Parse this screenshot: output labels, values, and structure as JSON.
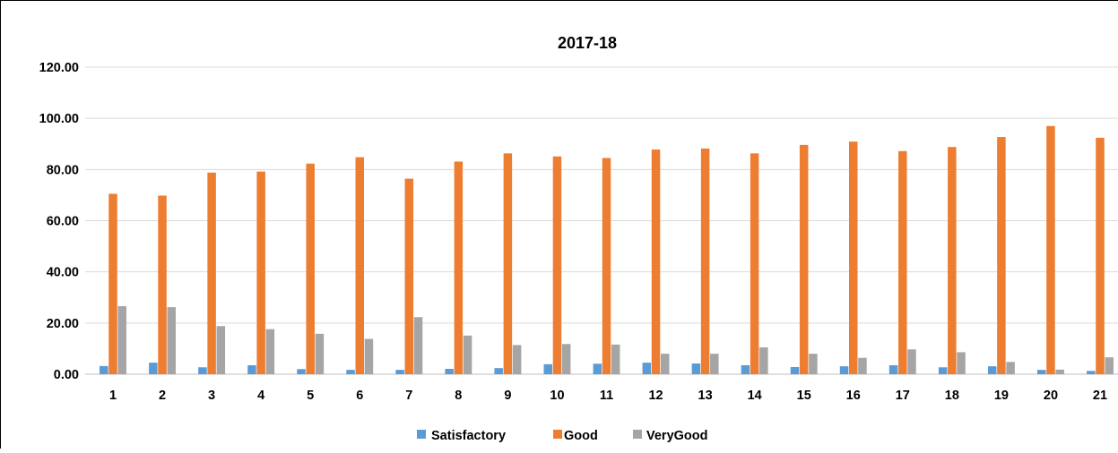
{
  "chart_data": {
    "type": "bar",
    "title": "2017-18",
    "categories": [
      "1",
      "2",
      "3",
      "4",
      "5",
      "6",
      "7",
      "8",
      "9",
      "10",
      "11",
      "12",
      "13",
      "14",
      "15",
      "16",
      "17",
      "18",
      "19",
      "20",
      "21"
    ],
    "series": [
      {
        "name": "Satisfactory",
        "color": "#5B9BD5",
        "values": [
          3.2,
          4.5,
          2.7,
          3.5,
          2.0,
          1.7,
          1.7,
          2.1,
          2.4,
          3.9,
          4.1,
          4.5,
          4.2,
          3.5,
          2.8,
          3.1,
          3.5,
          2.7,
          3.1,
          1.7,
          1.3
        ]
      },
      {
        "name": "Good",
        "color": "#ED7D31",
        "values": [
          70.5,
          69.8,
          78.8,
          79.2,
          82.3,
          84.8,
          76.4,
          83.1,
          86.3,
          85.1,
          84.5,
          87.8,
          88.2,
          86.3,
          89.6,
          90.9,
          87.2,
          88.8,
          92.7,
          97.0,
          92.4
        ]
      },
      {
        "name": "VeryGood",
        "color": "#A5A5A5",
        "values": [
          26.6,
          26.2,
          18.8,
          17.6,
          15.8,
          13.8,
          22.3,
          15.1,
          11.4,
          11.8,
          11.6,
          8.0,
          8.0,
          10.5,
          8.0,
          6.4,
          9.7,
          8.6,
          4.8,
          1.8,
          6.6
        ]
      }
    ],
    "ylim": [
      0,
      120
    ],
    "yticks": [
      "0.00",
      "20.00",
      "40.00",
      "60.00",
      "80.00",
      "100.00",
      "120.00"
    ],
    "ytick_values": [
      0,
      20,
      40,
      60,
      80,
      100,
      120
    ],
    "grid": true,
    "legend_position": "bottom"
  }
}
